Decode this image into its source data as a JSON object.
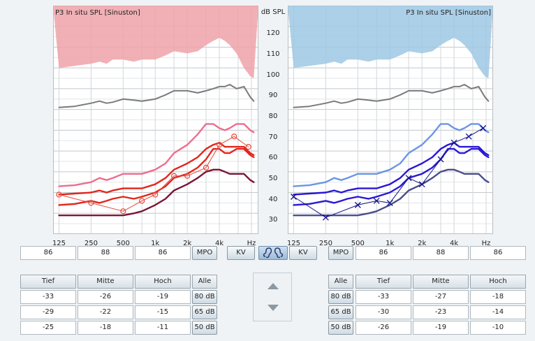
{
  "left_chart": {
    "title": "P3 In situ SPL [Sinuston]",
    "x_ticks": [
      "125",
      "250",
      "500",
      "1k",
      "2k",
      "4k",
      "Hz"
    ],
    "curves": {
      "ucl": [
        [
          125,
          100
        ],
        [
          175,
          101
        ],
        [
          250,
          102
        ],
        [
          300,
          103
        ],
        [
          350,
          102
        ],
        [
          400,
          104
        ],
        [
          500,
          104
        ],
        [
          630,
          103
        ],
        [
          750,
          104
        ],
        [
          1000,
          104
        ],
        [
          1250,
          106
        ],
        [
          1500,
          108
        ],
        [
          2000,
          107
        ],
        [
          2500,
          108
        ],
        [
          3000,
          111
        ],
        [
          3500,
          113
        ],
        [
          4000,
          114.5
        ],
        [
          4500,
          113
        ],
        [
          5000,
          111
        ],
        [
          5800,
          107
        ],
        [
          6800,
          100
        ],
        [
          7800,
          96
        ],
        [
          8400,
          95
        ]
      ],
      "grey": [
        [
          125,
          81
        ],
        [
          175,
          81.5
        ],
        [
          250,
          83
        ],
        [
          300,
          84
        ],
        [
          350,
          83
        ],
        [
          400,
          83.5
        ],
        [
          500,
          85
        ],
        [
          630,
          84.5
        ],
        [
          750,
          84
        ],
        [
          1000,
          85
        ],
        [
          1250,
          87
        ],
        [
          1500,
          89
        ],
        [
          2000,
          89
        ],
        [
          2500,
          88
        ],
        [
          3000,
          89
        ],
        [
          3500,
          90
        ],
        [
          4000,
          91
        ],
        [
          4500,
          91
        ],
        [
          5000,
          92
        ],
        [
          5800,
          90
        ],
        [
          6800,
          91
        ],
        [
          7800,
          86
        ],
        [
          8400,
          84
        ]
      ],
      "mpo_pink": [
        [
          125,
          43
        ],
        [
          175,
          43.5
        ],
        [
          250,
          45
        ],
        [
          300,
          47
        ],
        [
          350,
          46
        ],
        [
          400,
          47
        ],
        [
          500,
          49
        ],
        [
          630,
          49
        ],
        [
          750,
          49
        ],
        [
          1000,
          51
        ],
        [
          1250,
          54
        ],
        [
          1500,
          59
        ],
        [
          2000,
          63
        ],
        [
          2500,
          68
        ],
        [
          3000,
          73
        ],
        [
          3500,
          73
        ],
        [
          4000,
          71
        ],
        [
          4500,
          70
        ],
        [
          5000,
          71
        ],
        [
          5800,
          73
        ],
        [
          6800,
          73
        ],
        [
          7800,
          70
        ],
        [
          8400,
          69
        ]
      ],
      "red80": [
        [
          125,
          39
        ],
        [
          175,
          39.5
        ],
        [
          250,
          40
        ],
        [
          300,
          41
        ],
        [
          350,
          40
        ],
        [
          400,
          41
        ],
        [
          500,
          42
        ],
        [
          630,
          42
        ],
        [
          750,
          42
        ],
        [
          1000,
          44
        ],
        [
          1250,
          47
        ],
        [
          1500,
          51
        ],
        [
          2000,
          54
        ],
        [
          2500,
          57
        ],
        [
          3000,
          61
        ],
        [
          3500,
          63
        ],
        [
          4000,
          64
        ],
        [
          4500,
          62
        ],
        [
          5000,
          62
        ],
        [
          5800,
          62
        ],
        [
          6800,
          62
        ],
        [
          7800,
          59
        ],
        [
          8400,
          58
        ]
      ],
      "red65": [
        [
          125,
          34
        ],
        [
          175,
          34.5
        ],
        [
          250,
          36
        ],
        [
          300,
          35
        ],
        [
          350,
          36
        ],
        [
          400,
          37
        ],
        [
          500,
          38
        ],
        [
          630,
          37
        ],
        [
          750,
          38
        ],
        [
          1000,
          40
        ],
        [
          1250,
          43
        ],
        [
          1500,
          47
        ],
        [
          2000,
          49
        ],
        [
          2500,
          52
        ],
        [
          3000,
          56
        ],
        [
          3500,
          61
        ],
        [
          4000,
          61
        ],
        [
          4500,
          59
        ],
        [
          5000,
          59
        ],
        [
          5800,
          61
        ],
        [
          6800,
          61
        ],
        [
          7800,
          58
        ],
        [
          8400,
          57
        ]
      ],
      "maroon50": [
        [
          125,
          29
        ],
        [
          175,
          29
        ],
        [
          250,
          29
        ],
        [
          300,
          29
        ],
        [
          350,
          29
        ],
        [
          400,
          29
        ],
        [
          500,
          29
        ],
        [
          630,
          30
        ],
        [
          750,
          31
        ],
        [
          1000,
          34
        ],
        [
          1250,
          37
        ],
        [
          1500,
          41
        ],
        [
          2000,
          44
        ],
        [
          2500,
          47
        ],
        [
          3000,
          50
        ],
        [
          3500,
          51
        ],
        [
          4000,
          51
        ],
        [
          4500,
          50
        ],
        [
          5000,
          49
        ],
        [
          5800,
          49
        ],
        [
          6800,
          49
        ],
        [
          7800,
          46
        ],
        [
          8400,
          45
        ]
      ],
      "target": [
        [
          125,
          39
        ],
        [
          250,
          35
        ],
        [
          500,
          31
        ],
        [
          750,
          36
        ],
        [
          1000,
          39
        ],
        [
          1500,
          48
        ],
        [
          2000,
          48
        ],
        [
          3000,
          52
        ],
        [
          4000,
          63
        ],
        [
          5500,
          67
        ],
        [
          7500,
          62
        ]
      ]
    }
  },
  "right_chart": {
    "title": "P3 In situ SPL [Sinuston]",
    "x_ticks": [
      "125",
      "250",
      "500",
      "1k",
      "2k",
      "4k",
      "Hz"
    ],
    "curves": {
      "ucl": [
        [
          125,
          100
        ],
        [
          175,
          101
        ],
        [
          250,
          102
        ],
        [
          300,
          103
        ],
        [
          350,
          102
        ],
        [
          400,
          104
        ],
        [
          500,
          104
        ],
        [
          630,
          103
        ],
        [
          750,
          104
        ],
        [
          1000,
          104
        ],
        [
          1250,
          106
        ],
        [
          1500,
          108
        ],
        [
          2000,
          107
        ],
        [
          2500,
          108
        ],
        [
          3000,
          111
        ],
        [
          3500,
          113
        ],
        [
          4000,
          114.5
        ],
        [
          4500,
          113
        ],
        [
          5000,
          111
        ],
        [
          5800,
          107
        ],
        [
          6800,
          100
        ],
        [
          7800,
          96
        ],
        [
          8400,
          95
        ]
      ],
      "grey": [
        [
          125,
          81
        ],
        [
          175,
          81.5
        ],
        [
          250,
          83
        ],
        [
          300,
          84
        ],
        [
          350,
          83
        ],
        [
          400,
          83.5
        ],
        [
          500,
          85
        ],
        [
          630,
          84.5
        ],
        [
          750,
          84
        ],
        [
          1000,
          85
        ],
        [
          1250,
          87
        ],
        [
          1500,
          89
        ],
        [
          2000,
          89
        ],
        [
          2500,
          88
        ],
        [
          3000,
          89
        ],
        [
          3500,
          90
        ],
        [
          4000,
          91
        ],
        [
          4500,
          91
        ],
        [
          5000,
          92
        ],
        [
          5800,
          90
        ],
        [
          6800,
          91
        ],
        [
          7800,
          86
        ],
        [
          8400,
          84
        ]
      ],
      "mpo_lightblue": [
        [
          125,
          43
        ],
        [
          175,
          43.5
        ],
        [
          250,
          45
        ],
        [
          300,
          47
        ],
        [
          350,
          46
        ],
        [
          400,
          47
        ],
        [
          500,
          49
        ],
        [
          630,
          49
        ],
        [
          750,
          49
        ],
        [
          1000,
          51
        ],
        [
          1250,
          54
        ],
        [
          1500,
          59
        ],
        [
          2000,
          63
        ],
        [
          2500,
          68
        ],
        [
          3000,
          73
        ],
        [
          3500,
          73
        ],
        [
          4000,
          71
        ],
        [
          4500,
          70
        ],
        [
          5000,
          71
        ],
        [
          5800,
          73
        ],
        [
          6800,
          73
        ],
        [
          7800,
          70
        ],
        [
          8400,
          69
        ]
      ],
      "blue80": [
        [
          125,
          39
        ],
        [
          175,
          39.5
        ],
        [
          250,
          40
        ],
        [
          300,
          41
        ],
        [
          350,
          40
        ],
        [
          400,
          41
        ],
        [
          500,
          42
        ],
        [
          630,
          42
        ],
        [
          750,
          42
        ],
        [
          1000,
          44
        ],
        [
          1250,
          47
        ],
        [
          1500,
          51
        ],
        [
          2000,
          54
        ],
        [
          2500,
          57
        ],
        [
          3000,
          61
        ],
        [
          3500,
          63
        ],
        [
          4000,
          64
        ],
        [
          4500,
          62
        ],
        [
          5000,
          62
        ],
        [
          5800,
          62
        ],
        [
          6800,
          62
        ],
        [
          7800,
          59
        ],
        [
          8400,
          58
        ]
      ],
      "blue65": [
        [
          125,
          34
        ],
        [
          175,
          34.5
        ],
        [
          250,
          36
        ],
        [
          300,
          35
        ],
        [
          350,
          36
        ],
        [
          400,
          37
        ],
        [
          500,
          38
        ],
        [
          630,
          37
        ],
        [
          750,
          38
        ],
        [
          1000,
          40
        ],
        [
          1250,
          43
        ],
        [
          1500,
          47
        ],
        [
          2000,
          49
        ],
        [
          2500,
          52
        ],
        [
          3000,
          56
        ],
        [
          3500,
          61
        ],
        [
          4000,
          61
        ],
        [
          4500,
          59
        ],
        [
          5000,
          59
        ],
        [
          5800,
          61
        ],
        [
          6800,
          61
        ],
        [
          7800,
          58
        ],
        [
          8400,
          57
        ]
      ],
      "navy50": [
        [
          125,
          29
        ],
        [
          175,
          29
        ],
        [
          250,
          29
        ],
        [
          300,
          29
        ],
        [
          350,
          29
        ],
        [
          400,
          29
        ],
        [
          500,
          29
        ],
        [
          630,
          30
        ],
        [
          750,
          31
        ],
        [
          1000,
          34
        ],
        [
          1250,
          37
        ],
        [
          1500,
          41
        ],
        [
          2000,
          44
        ],
        [
          2500,
          47
        ],
        [
          3000,
          50
        ],
        [
          3500,
          51
        ],
        [
          4000,
          51
        ],
        [
          4500,
          50
        ],
        [
          5000,
          49
        ],
        [
          5800,
          49
        ],
        [
          6800,
          49
        ],
        [
          7800,
          46
        ],
        [
          8400,
          45
        ]
      ],
      "target": [
        [
          125,
          38
        ],
        [
          250,
          28
        ],
        [
          500,
          34
        ],
        [
          750,
          36
        ],
        [
          1000,
          35
        ],
        [
          1500,
          47
        ],
        [
          2000,
          44
        ],
        [
          3000,
          56
        ],
        [
          4000,
          64
        ],
        [
          5500,
          67
        ],
        [
          7500,
          71
        ]
      ]
    }
  },
  "y_axis": {
    "unit": "dB SPL",
    "ticks": [
      "120",
      "110",
      "100",
      "90",
      "80",
      "70",
      "60",
      "50",
      "40",
      "30"
    ]
  },
  "mpo_row": {
    "left": [
      "86",
      "88",
      "86"
    ],
    "right": [
      "86",
      "88",
      "86"
    ],
    "mpo_label": "MPO",
    "kv_label": "KV"
  },
  "left_table": {
    "headers": [
      "Tief",
      "Mitte",
      "Hoch",
      "Alle"
    ],
    "rows": [
      {
        "values": [
          "-33",
          "-26",
          "-19"
        ],
        "level": "80 dB"
      },
      {
        "values": [
          "-29",
          "-22",
          "-15"
        ],
        "level": "65 dB"
      },
      {
        "values": [
          "-25",
          "-18",
          "-11"
        ],
        "level": "50 dB"
      }
    ]
  },
  "right_table": {
    "headers": [
      "Alle",
      "Tief",
      "Mitte",
      "Hoch"
    ],
    "rows": [
      {
        "level": "80 dB",
        "values": [
          "-33",
          "-27",
          "-18"
        ]
      },
      {
        "level": "65 dB",
        "values": [
          "-30",
          "-23",
          "-14"
        ]
      },
      {
        "level": "50 dB",
        "values": [
          "-26",
          "-19",
          "-10"
        ]
      }
    ]
  },
  "colors": {
    "left_ucl_fill": "#eea2a8",
    "right_ucl_fill": "#9dc8e4",
    "grey": "#7a7a7a",
    "pink": "#ec6e8f",
    "red": "#e2261c",
    "red_thin": "#e14a3c",
    "maroon": "#7a1538",
    "lightblue": "#6b95e6",
    "blue": "#2a17d6",
    "navy": "#4a4e8a",
    "target_blue": "#13138a"
  }
}
